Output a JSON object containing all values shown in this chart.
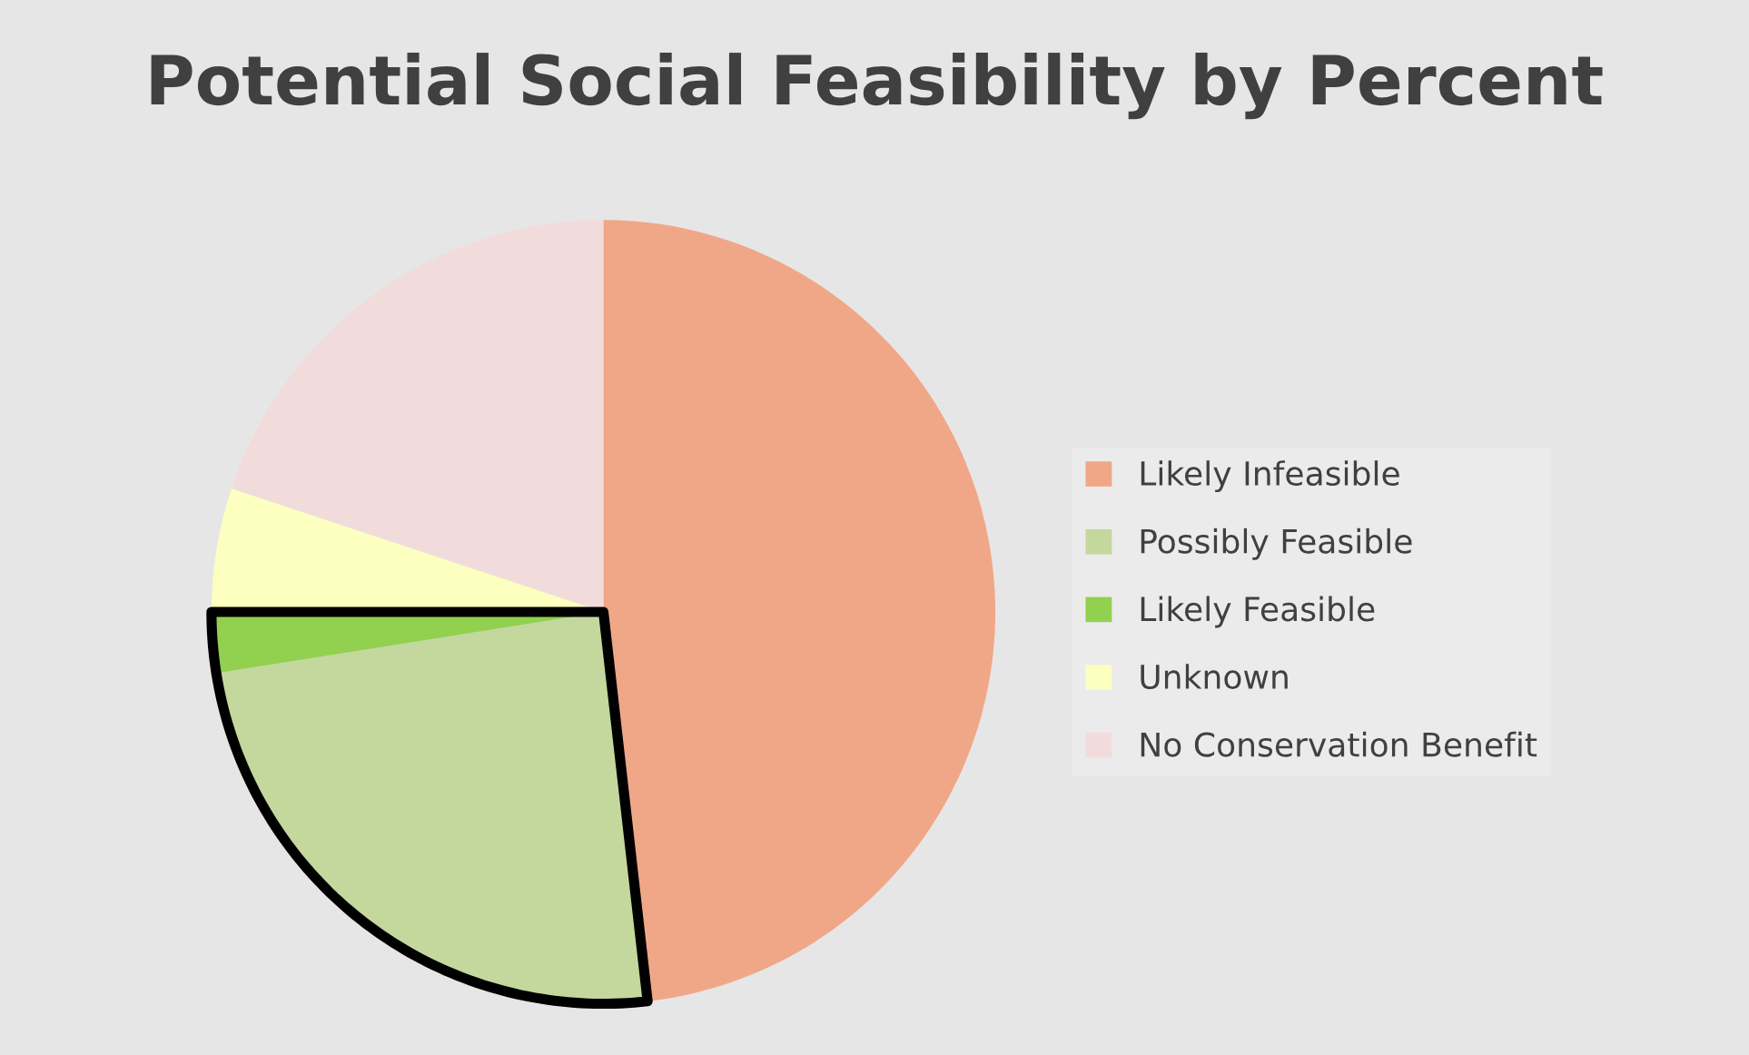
{
  "chart_data": {
    "type": "pie",
    "title": "Potential Social Feasibility by Percent",
    "categories": [
      "Likely Infeasible",
      "Possibly Feasible",
      "Likely Feasible",
      "Unknown",
      "No Conservation Benefit"
    ],
    "values": [
      48.2,
      24.3,
      2.5,
      5.1,
      19.9
    ],
    "colors": [
      "#f0a788",
      "#c4d89e",
      "#92d050",
      "#fcffc0",
      "#f2dcdb"
    ],
    "legend": "right"
  }
}
